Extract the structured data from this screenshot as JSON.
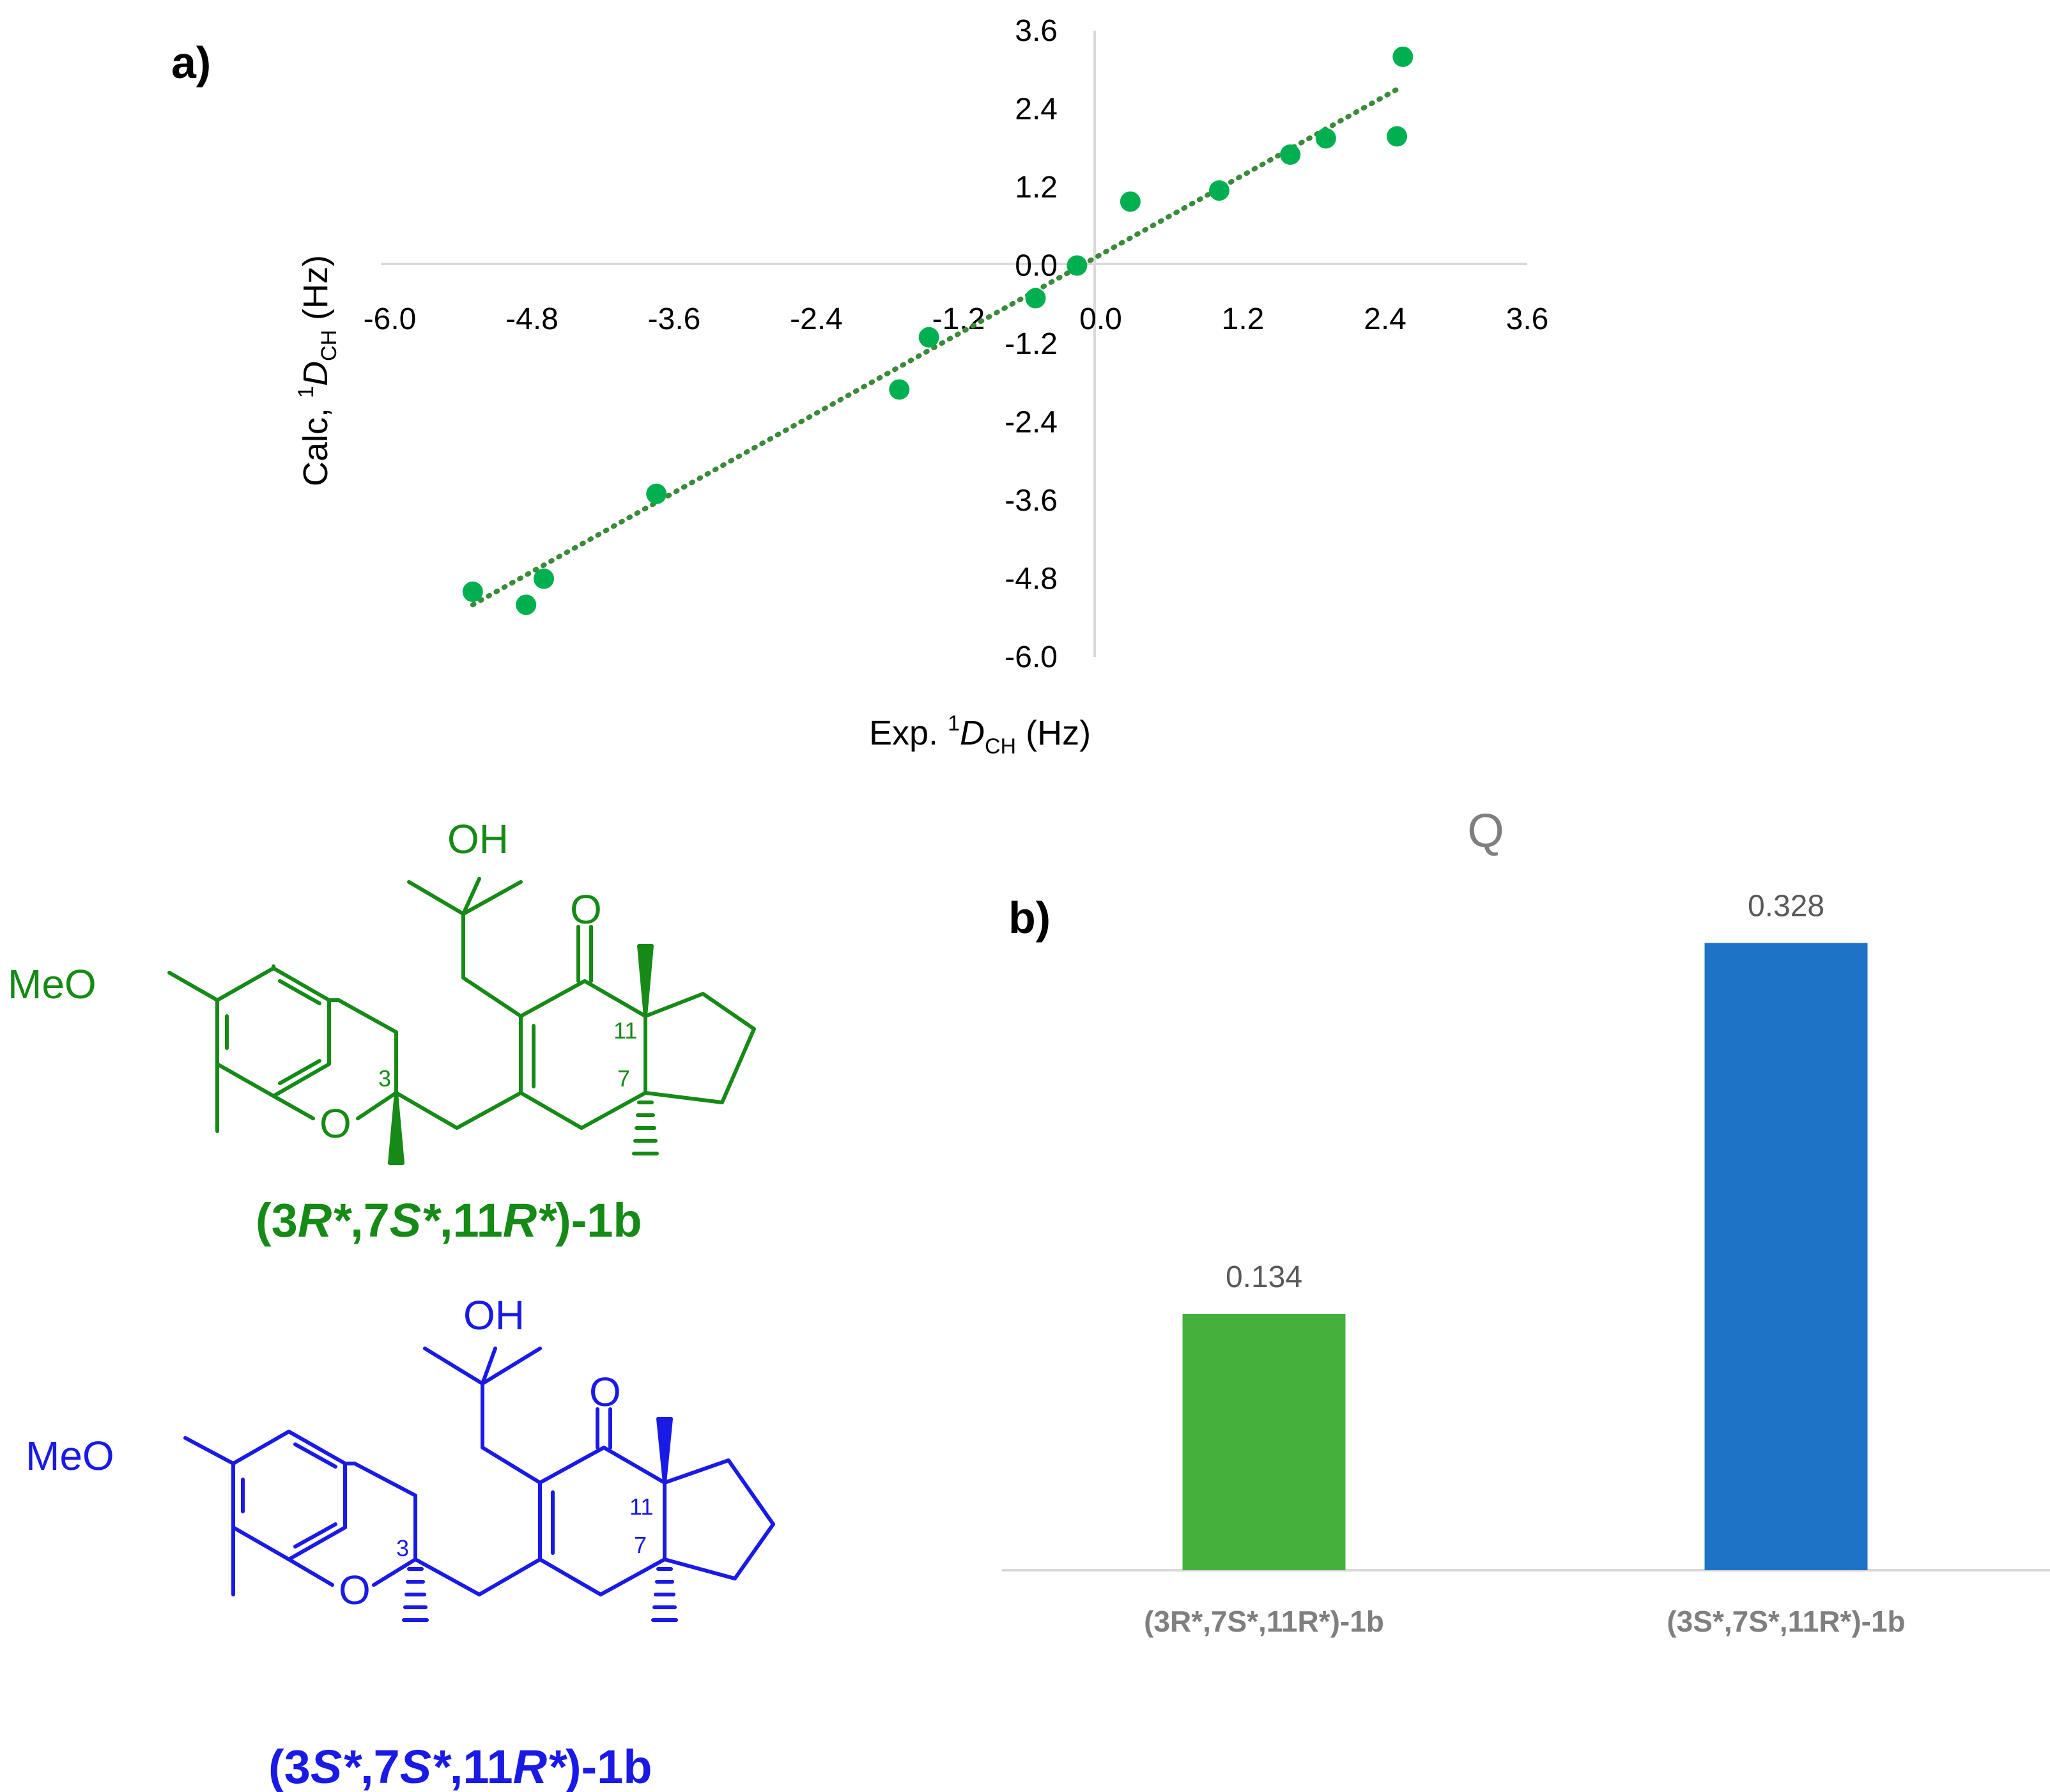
{
  "panel_a_label": "a)",
  "panel_b_label": "b)",
  "chart_data": [
    {
      "type": "scatter",
      "title": "",
      "xlabel_prefix": "Exp. ",
      "xlabel_sup": "1",
      "xlabel_D": "D",
      "xlabel_sub": "CH",
      "xlabel_unit": " (Hz)",
      "ylabel_prefix": "Calc, ",
      "ylabel_sup": "1",
      "ylabel_D": "D",
      "ylabel_sub": "CH",
      "ylabel_unit": " (Hz)",
      "xlim": [
        -6.0,
        3.6
      ],
      "ylim": [
        -6.0,
        3.6
      ],
      "xticks": [
        "-6.0",
        "-4.8",
        "-3.6",
        "-2.4",
        "-1.2",
        "0.0",
        "1.2",
        "2.4",
        "3.6"
      ],
      "yticks": [
        "3.6",
        "2.4",
        "1.2",
        "0.0",
        "-1.2",
        "-2.4",
        "-3.6",
        "-4.8",
        "-6.0"
      ],
      "points": [
        {
          "x": -5.3,
          "y": -5.0
        },
        {
          "x": -4.85,
          "y": -5.2
        },
        {
          "x": -4.7,
          "y": -4.8
        },
        {
          "x": -3.75,
          "y": -3.5
        },
        {
          "x": -1.7,
          "y": -1.9
        },
        {
          "x": -1.45,
          "y": -1.1
        },
        {
          "x": -0.55,
          "y": -0.5
        },
        {
          "x": -0.2,
          "y": 0.0
        },
        {
          "x": 0.25,
          "y": 0.98
        },
        {
          "x": 1.0,
          "y": 1.15
        },
        {
          "x": 1.6,
          "y": 1.7
        },
        {
          "x": 1.9,
          "y": 1.95
        },
        {
          "x": 2.5,
          "y": 1.98
        },
        {
          "x": 2.55,
          "y": 3.2
        }
      ],
      "trendline": {
        "style": "dotted",
        "x": [
          -5.3,
          2.5
        ],
        "y": [
          -5.2,
          2.7
        ]
      },
      "colors": {
        "marker": "#00b050",
        "trend": "#3a8a3a"
      }
    },
    {
      "type": "bar",
      "title": "Q",
      "categories": [
        "(3R*,7S*,11R*)-1b",
        "(3S*,7S*,11R*)-1b"
      ],
      "values": [
        0.134,
        0.328
      ],
      "value_labels": [
        "0.134",
        "0.328"
      ],
      "ylim": [
        0,
        0.4
      ],
      "colors": [
        "#45b03c",
        "#1f73c7"
      ]
    }
  ],
  "molecules": [
    {
      "color": "#168a16",
      "atoms": {
        "oh": "OH",
        "carbonyl_o": "O",
        "methoxy": "MeO",
        "ring_o": "O",
        "c3": "3",
        "c7": "7",
        "c11": "11"
      },
      "label_open": "(3",
      "label_r1": "R*",
      "label_mid1": ",7",
      "label_s1": "S*",
      "label_mid2": ",11",
      "label_r2": "R*",
      "label_close": ")-1b"
    },
    {
      "color": "#1a1ae6",
      "atoms": {
        "oh": "OH",
        "carbonyl_o": "O",
        "methoxy": "MeO",
        "ring_o": "O",
        "c3": "3",
        "c7": "7",
        "c11": "11"
      },
      "label_open": "(3",
      "label_r1": "S*",
      "label_mid1": ",7",
      "label_s1": "S*",
      "label_mid2": ",11",
      "label_r2": "R*",
      "label_close": ")-1b"
    }
  ]
}
